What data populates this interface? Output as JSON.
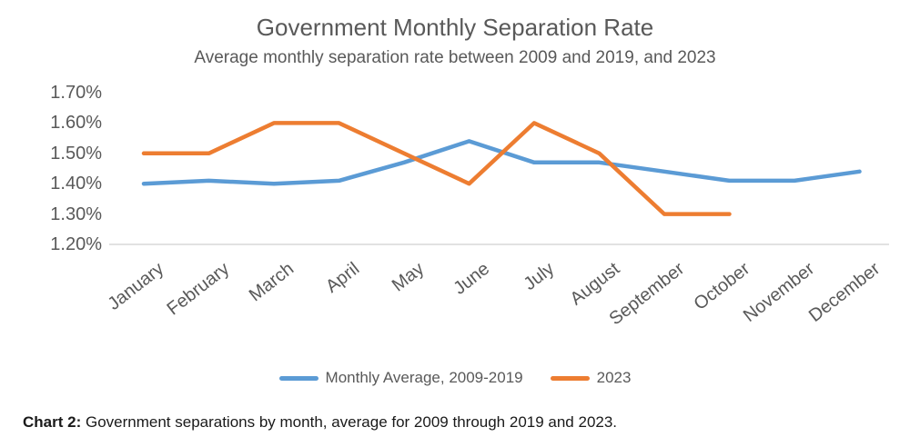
{
  "chart_data": {
    "type": "line",
    "title": "Government Monthly Separation Rate",
    "subtitle": "Average monthly separation rate between 2009 and 2019, and 2023",
    "categories": [
      "January",
      "February",
      "March",
      "April",
      "May",
      "June",
      "July",
      "August",
      "September",
      "October",
      "November",
      "December"
    ],
    "y_ticks": [
      "1.70%",
      "1.60%",
      "1.50%",
      "1.40%",
      "1.30%",
      "1.20%"
    ],
    "ylim": [
      1.2,
      1.7
    ],
    "y_step": 0.1,
    "xlabel": "",
    "ylabel": "",
    "grid": false,
    "legend_position": "bottom",
    "series": [
      {
        "name": "Monthly Average, 2009-2019",
        "color": "#5B9BD5",
        "values": [
          1.4,
          1.41,
          1.4,
          1.41,
          1.47,
          1.54,
          1.47,
          1.47,
          1.44,
          1.41,
          1.41,
          1.44
        ]
      },
      {
        "name": "2023",
        "color": "#ED7D31",
        "values": [
          1.5,
          1.5,
          1.6,
          1.6,
          1.5,
          1.4,
          1.6,
          1.5,
          1.3,
          1.3,
          null,
          null
        ]
      }
    ]
  },
  "caption": {
    "label": "Chart 2:",
    "text": "Government separations by month, average for 2009 through 2019 and 2023."
  },
  "colors": {
    "axis_line": "#d9d9d9",
    "label_gray": "#595959"
  }
}
